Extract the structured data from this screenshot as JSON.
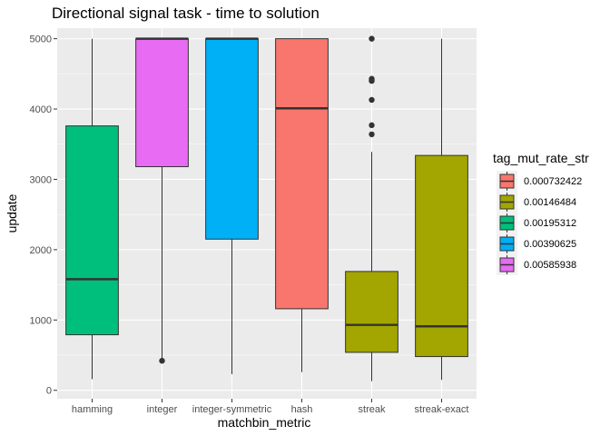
{
  "chart_data": {
    "type": "boxplot",
    "title": "Directional signal task - time to solution",
    "xlabel": "matchbin_metric",
    "ylabel": "update",
    "ylim": [
      -120,
      5150
    ],
    "yticks": [
      0,
      1000,
      2000,
      3000,
      4000,
      5000
    ],
    "grid": true,
    "legend_position": "right",
    "legend_title": "tag_mut_rate_str",
    "legend": [
      {
        "label": "0.000732422",
        "color": "#F8766D"
      },
      {
        "label": "0.00146484",
        "color": "#A3A500"
      },
      {
        "label": "0.00195312",
        "color": "#00BF7D"
      },
      {
        "label": "0.00390625",
        "color": "#00B0F6"
      },
      {
        "label": "0.00585938",
        "color": "#E76BF3"
      }
    ],
    "categories": [
      "hamming",
      "integer",
      "integer-symmetric",
      "hash",
      "streak",
      "streak-exact"
    ],
    "boxes": [
      {
        "category": "hamming",
        "group": "0.00195312",
        "color": "#00BF7D",
        "min": 160,
        "q1": 790,
        "median": 1580,
        "q3": 3760,
        "max": 5000,
        "outliers": []
      },
      {
        "category": "integer",
        "group": "0.00585938",
        "color": "#E76BF3",
        "min": 420,
        "q1": 3180,
        "median": 5000,
        "q3": 5000,
        "max": 5000,
        "outliers": [
          420
        ]
      },
      {
        "category": "integer-symmetric",
        "group": "0.00390625",
        "color": "#00B0F6",
        "min": 230,
        "q1": 2150,
        "median": 5000,
        "q3": 5000,
        "max": 5000,
        "outliers": []
      },
      {
        "category": "hash",
        "group": "0.000732422",
        "color": "#F8766D",
        "min": 260,
        "q1": 1160,
        "median": 4010,
        "q3": 5000,
        "max": 5000,
        "outliers": []
      },
      {
        "category": "streak",
        "group": "0.00146484",
        "color": "#A3A500",
        "min": 130,
        "q1": 540,
        "median": 930,
        "q3": 1690,
        "max": 3390,
        "outliers": [
          3640,
          3770,
          4130,
          4400,
          4430,
          5000
        ]
      },
      {
        "category": "streak-exact",
        "group": "0.00146484",
        "color": "#A3A500",
        "min": 150,
        "q1": 480,
        "median": 910,
        "q3": 3340,
        "max": 5000,
        "outliers": []
      }
    ]
  }
}
